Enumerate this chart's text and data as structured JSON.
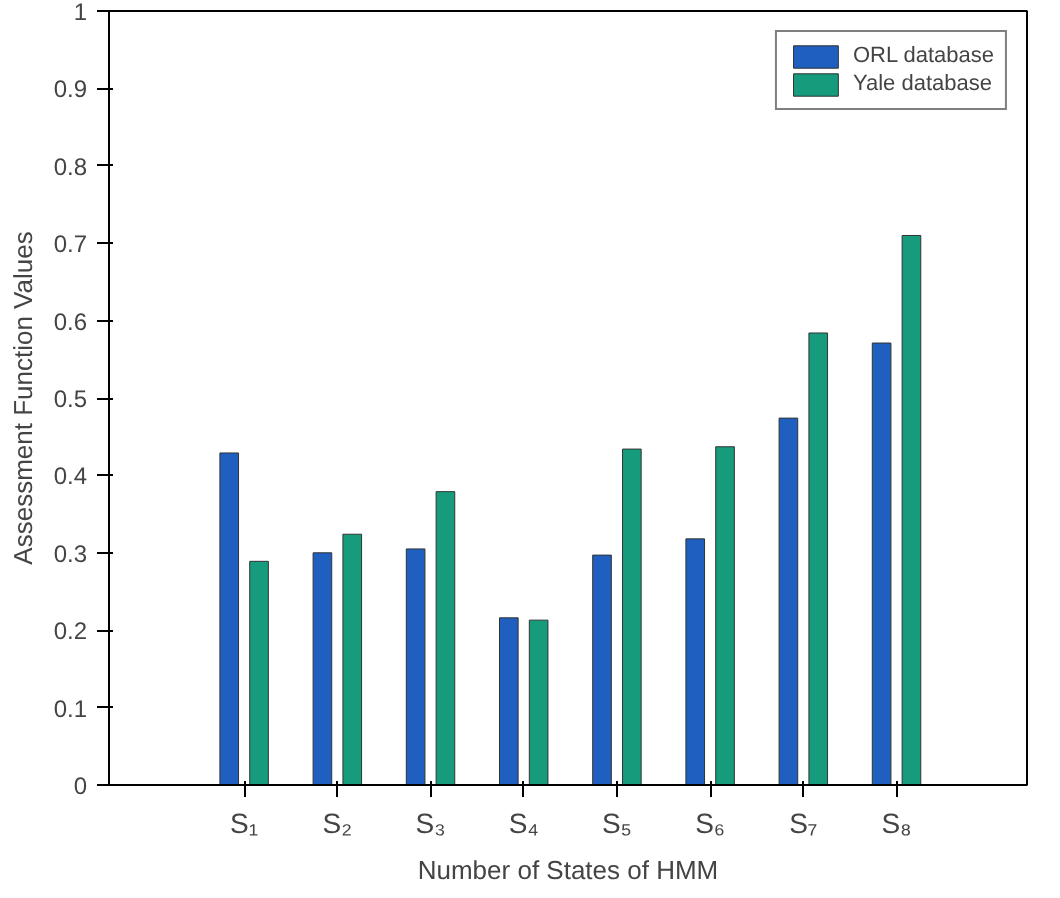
{
  "chart_data": {
    "type": "bar",
    "xlabel": "Number of States of HMM",
    "ylabel": "Assessment Function Values",
    "categories": [
      "S₁",
      "S₂",
      "S₃",
      "S₄",
      "S₅",
      "S₆",
      "S₇",
      "S₈"
    ],
    "series": [
      {
        "name": "ORL database",
        "color": "#1f5fbf",
        "values": [
          0.429,
          0.3,
          0.305,
          0.216,
          0.297,
          0.318,
          0.474,
          0.571
        ]
      },
      {
        "name": "Yale database",
        "color": "#169c7c",
        "values": [
          0.289,
          0.324,
          0.379,
          0.213,
          0.434,
          0.437,
          0.584,
          0.71
        ]
      }
    ],
    "ylim": [
      0,
      1
    ],
    "yticks": [
      0,
      0.1,
      0.2,
      0.3,
      0.4,
      0.5,
      0.6,
      0.7,
      0.8,
      0.9,
      1
    ],
    "legend": "top right"
  }
}
